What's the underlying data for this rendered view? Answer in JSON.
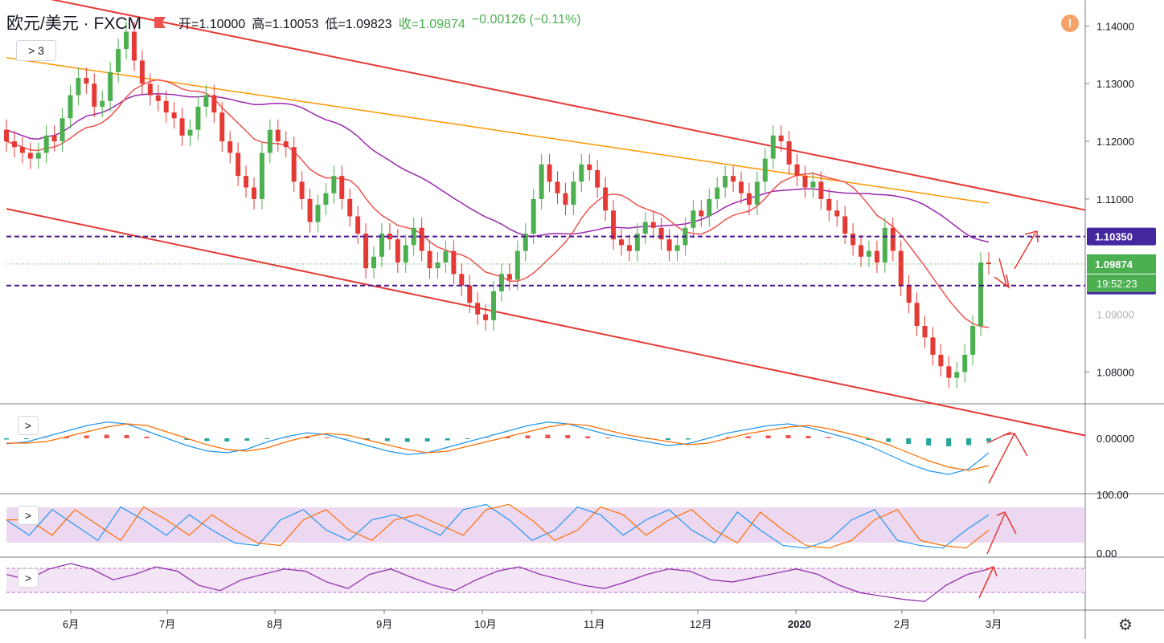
{
  "header": {
    "symbol": "欧元/美元 · FXCM",
    "open": "开=1.10000",
    "high": "高=1.10053",
    "low": "低=1.09823",
    "close": "收=1.09874",
    "change": "−0.00126 (−0.11%)"
  },
  "toolbar": {
    "indicators_toggle": "> 3",
    "collapse": ">"
  },
  "alert_icon": "!",
  "settings_icon": "gear-icon",
  "colors": {
    "up": "#4caf50",
    "down": "#e53935",
    "ma_orange": "#ff9800",
    "ma_purple": "#9c27b0",
    "ma_red": "#ef5350",
    "channel": "#e53935",
    "level": "#4a148c",
    "price_tag": "#4caf50",
    "level_tag": "#4527a0"
  },
  "chart_data": [
    {
      "type": "candlestick",
      "name": "EUR/USD daily",
      "yticks": [
        "1.14000",
        "1.13000",
        "1.12000",
        "1.11000",
        "1.08000"
      ],
      "ylim": [
        1.0745,
        1.1445
      ],
      "xticks": [
        "6月",
        "7月",
        "8月",
        "9月",
        "10月",
        "11月",
        "12月",
        "2020",
        "2月",
        "3月"
      ],
      "last_price": "1.09874",
      "countdown": "19:52:23",
      "levels": [
        {
          "label": "1.10350",
          "value": 1.1035
        },
        {
          "label": "1.09500",
          "value": 1.095
        }
      ],
      "hidden_ticks": [
        "1.09000"
      ],
      "channel": {
        "upper": [
          [
            0,
            1.1462
          ],
          [
            1,
            1.1081
          ]
        ],
        "lower": [
          [
            0,
            1.1083
          ],
          [
            1,
            1.069
          ]
        ]
      },
      "close_series": [
        1.12,
        1.119,
        1.118,
        1.117,
        1.118,
        1.121,
        1.12,
        1.124,
        1.128,
        1.131,
        1.13,
        1.126,
        1.127,
        1.132,
        1.136,
        1.139,
        1.134,
        1.13,
        1.128,
        1.127,
        1.125,
        1.124,
        1.121,
        1.122,
        1.126,
        1.128,
        1.125,
        1.12,
        1.118,
        1.114,
        1.112,
        1.11,
        1.118,
        1.122,
        1.12,
        1.119,
        1.113,
        1.11,
        1.106,
        1.109,
        1.111,
        1.114,
        1.11,
        1.107,
        1.104,
        1.098,
        1.1,
        1.104,
        1.103,
        1.099,
        1.102,
        1.105,
        1.101,
        1.098,
        1.099,
        1.101,
        1.097,
        1.095,
        1.092,
        1.09,
        1.089,
        1.094,
        1.097,
        1.096,
        1.101,
        1.104,
        1.11,
        1.116,
        1.113,
        1.111,
        1.109,
        1.113,
        1.116,
        1.115,
        1.112,
        1.108,
        1.103,
        1.102,
        1.101,
        1.104,
        1.106,
        1.105,
        1.103,
        1.101,
        1.102,
        1.105,
        1.108,
        1.107,
        1.11,
        1.112,
        1.114,
        1.113,
        1.111,
        1.109,
        1.113,
        1.117,
        1.121,
        1.12,
        1.116,
        1.114,
        1.112,
        1.113,
        1.11,
        1.108,
        1.107,
        1.104,
        1.102,
        1.1,
        1.101,
        1.099,
        1.105,
        1.101,
        1.095,
        1.092,
        1.088,
        1.086,
        1.083,
        1.081,
        1.079,
        1.08,
        1.083,
        1.088,
        1.099,
        1.0987
      ]
    },
    {
      "type": "histogram+line",
      "name": "MACD",
      "ytick": "0.00000",
      "macd_series": [
        -0.15,
        -0.1,
        0.05,
        0.2,
        0.35,
        0.45,
        0.4,
        0.2,
        0.0,
        -0.2,
        -0.35,
        -0.4,
        -0.3,
        -0.1,
        0.05,
        0.15,
        0.1,
        -0.05,
        -0.2,
        -0.35,
        -0.45,
        -0.4,
        -0.25,
        -0.1,
        0.05,
        0.2,
        0.35,
        0.45,
        0.4,
        0.25,
        0.1,
        0.0,
        -0.1,
        -0.2,
        -0.15,
        0.0,
        0.15,
        0.25,
        0.35,
        0.4,
        0.3,
        0.15,
        0.0,
        -0.2,
        -0.45,
        -0.7,
        -0.9,
        -1.0,
        -0.85,
        -0.4
      ]
    },
    {
      "type": "line",
      "name": "Stochastic",
      "yticks": [
        "100.00",
        "0.00"
      ],
      "k_series": [
        60,
        30,
        80,
        50,
        20,
        85,
        60,
        30,
        70,
        40,
        15,
        10,
        60,
        80,
        40,
        20,
        60,
        70,
        50,
        30,
        80,
        90,
        60,
        20,
        40,
        85,
        70,
        30,
        60,
        80,
        40,
        15,
        75,
        40,
        10,
        5,
        20,
        60,
        80,
        20,
        10,
        5,
        40,
        70
      ]
    },
    {
      "type": "line",
      "name": "RSI",
      "rsi_series": [
        55,
        50,
        60,
        65,
        60,
        50,
        55,
        62,
        58,
        45,
        40,
        50,
        55,
        60,
        58,
        48,
        42,
        55,
        60,
        52,
        45,
        40,
        50,
        58,
        62,
        55,
        50,
        45,
        42,
        48,
        55,
        60,
        58,
        50,
        48,
        52,
        56,
        60,
        55,
        45,
        38,
        35,
        32,
        30,
        45,
        55,
        60
      ]
    }
  ]
}
